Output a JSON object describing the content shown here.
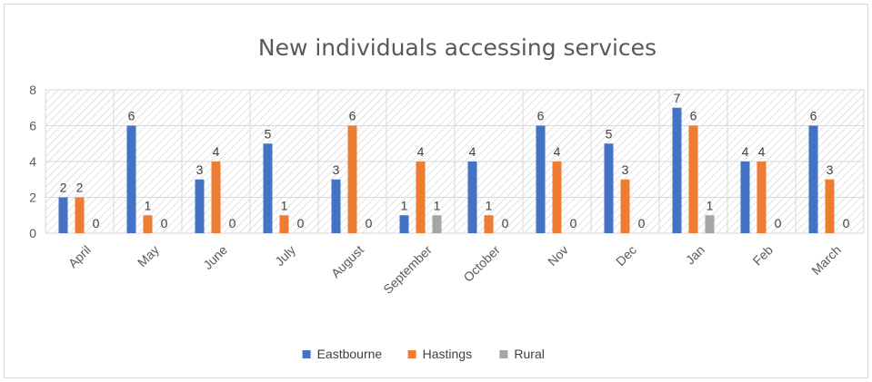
{
  "chart_data": {
    "type": "bar",
    "title": "New individuals accessing services",
    "categories": [
      "April",
      "May",
      "June",
      "July",
      "August",
      "September",
      "October",
      "Nov",
      "Dec",
      "Jan",
      "Feb",
      "March"
    ],
    "series": [
      {
        "name": "Eastbourne",
        "color": "#4472c4",
        "values": [
          2,
          6,
          3,
          5,
          3,
          1,
          4,
          6,
          5,
          7,
          4,
          6
        ]
      },
      {
        "name": "Hastings",
        "color": "#ed7d31",
        "values": [
          2,
          1,
          4,
          1,
          6,
          4,
          1,
          4,
          3,
          6,
          4,
          3
        ]
      },
      {
        "name": "Rural",
        "color": "#a5a5a5",
        "values": [
          0,
          0,
          0,
          0,
          0,
          1,
          0,
          0,
          0,
          1,
          0,
          0
        ]
      }
    ],
    "ylim": [
      0,
      8
    ],
    "yticks": [
      0,
      2,
      4,
      6,
      8
    ],
    "grid": true,
    "plot_background": "hatched",
    "data_labels": true,
    "legend_position": "bottom"
  }
}
